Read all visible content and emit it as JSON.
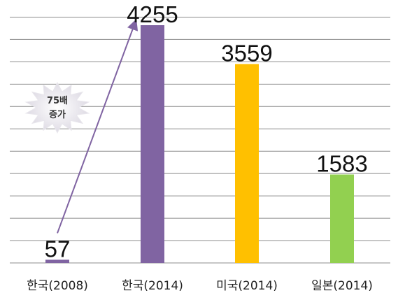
{
  "chart_data": {
    "type": "bar",
    "categories": [
      "한국(2008)",
      "한국(2014)",
      "미국(2014)",
      "일본(2014)"
    ],
    "values": [
      57,
      4255,
      3559,
      1583
    ],
    "data_labels": [
      "57",
      "4255",
      "3559",
      "1583"
    ],
    "bar_colors": [
      "#8064A2",
      "#8064A2",
      "#FFC000",
      "#92D050"
    ],
    "ylim": [
      0,
      4400
    ],
    "y_gridline_step": 400,
    "grid": true,
    "legend": "none",
    "title": "",
    "xlabel": "",
    "ylabel": "",
    "annotation": {
      "line1": "75배",
      "line2": "증가",
      "arrow_from": "한국(2008)",
      "arrow_to": "한국(2014)",
      "color": "#8064A2"
    }
  }
}
